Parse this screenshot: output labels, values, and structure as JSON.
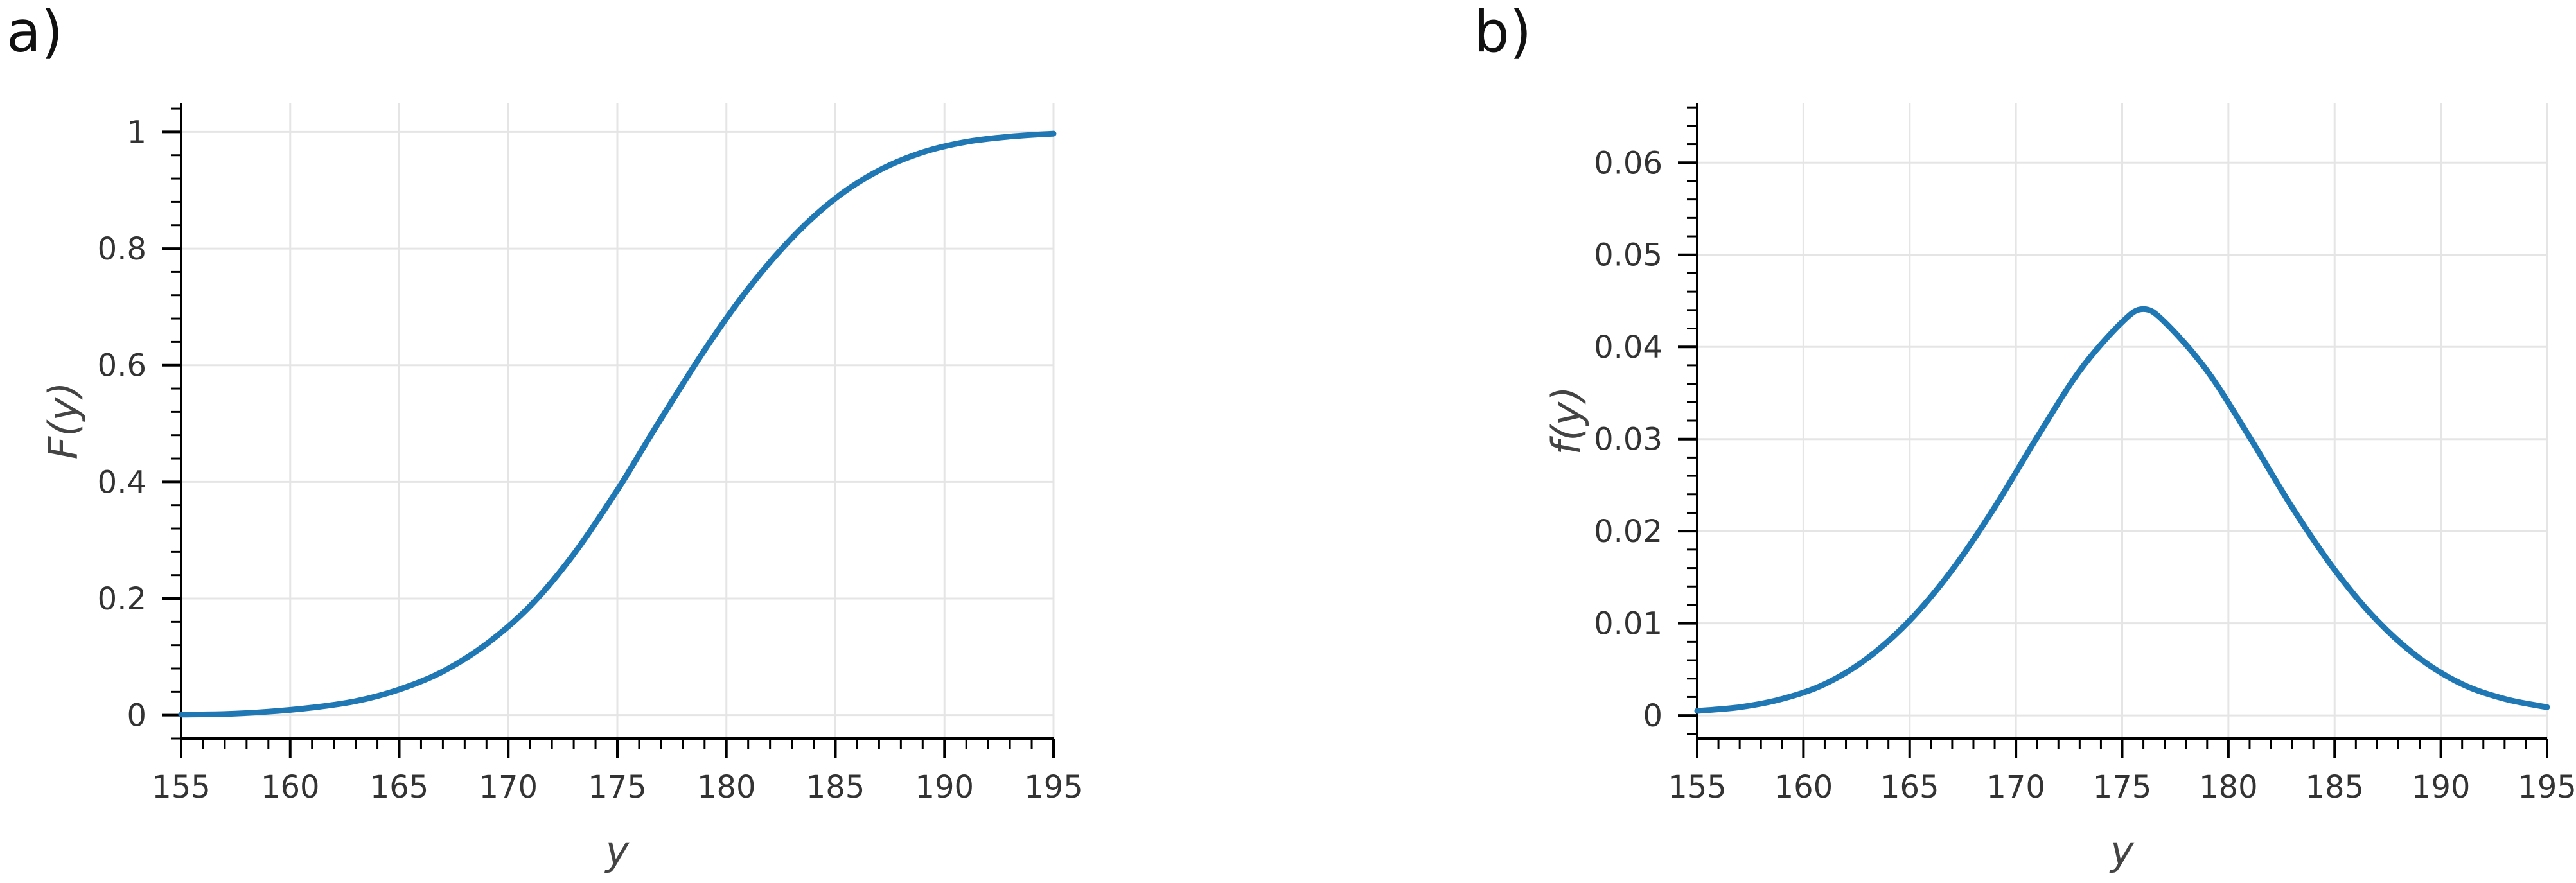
{
  "panels": [
    {
      "label": "a)"
    },
    {
      "label": "b)"
    }
  ],
  "chart_data": [
    {
      "type": "line",
      "title": "",
      "xlabel": "y",
      "ylabel": "F(y)",
      "xlim": [
        155,
        195
      ],
      "ylim": [
        -0.04,
        1.05
      ],
      "xticks": [
        155,
        160,
        165,
        170,
        175,
        180,
        185,
        190,
        195
      ],
      "xtick_labels": [
        "155",
        "160",
        "165",
        "170",
        "175",
        "180",
        "185",
        "190",
        "195"
      ],
      "yticks": [
        0,
        0.2,
        0.4,
        0.6,
        0.8,
        1
      ],
      "ytick_labels": [
        "0",
        "0.2",
        "0.4",
        "0.6",
        "0.8",
        "1"
      ],
      "grid": true,
      "legend": "none",
      "color": "#1f77b4",
      "x": [
        155,
        157,
        159,
        161,
        163,
        165,
        167,
        169,
        171,
        173,
        175,
        176,
        177,
        179,
        181,
        183,
        185,
        187,
        189,
        191,
        193,
        195
      ],
      "y": [
        0.001,
        0.002,
        0.006,
        0.013,
        0.024,
        0.044,
        0.075,
        0.122,
        0.187,
        0.276,
        0.386,
        0.447,
        0.508,
        0.626,
        0.731,
        0.818,
        0.886,
        0.934,
        0.965,
        0.983,
        0.992,
        0.997
      ]
    },
    {
      "type": "line",
      "title": "",
      "xlabel": "y",
      "ylabel": "f(y)",
      "xlim": [
        155,
        195
      ],
      "ylim": [
        -0.0025,
        0.0665
      ],
      "xticks": [
        155,
        160,
        165,
        170,
        175,
        180,
        185,
        190,
        195
      ],
      "xtick_labels": [
        "155",
        "160",
        "165",
        "170",
        "175",
        "180",
        "185",
        "190",
        "195"
      ],
      "yticks": [
        0,
        0.01,
        0.02,
        0.03,
        0.04,
        0.05,
        0.06
      ],
      "ytick_labels": [
        "0",
        "0.01",
        "0.02",
        "0.03",
        "0.04",
        "0.05",
        "0.06"
      ],
      "grid": true,
      "legend": "none",
      "color": "#1f77b4",
      "x": [
        155,
        157,
        159,
        161,
        163,
        165,
        167,
        169,
        171,
        173,
        175,
        176,
        177,
        179,
        181,
        183,
        185,
        187,
        189,
        191,
        193,
        195
      ],
      "y": [
        0.0005,
        0.0009,
        0.0018,
        0.0034,
        0.0062,
        0.0103,
        0.0158,
        0.0226,
        0.0302,
        0.0374,
        0.0427,
        0.0441,
        0.0427,
        0.0374,
        0.0302,
        0.0226,
        0.0158,
        0.0103,
        0.0062,
        0.0034,
        0.0018,
        0.0009
      ]
    }
  ]
}
